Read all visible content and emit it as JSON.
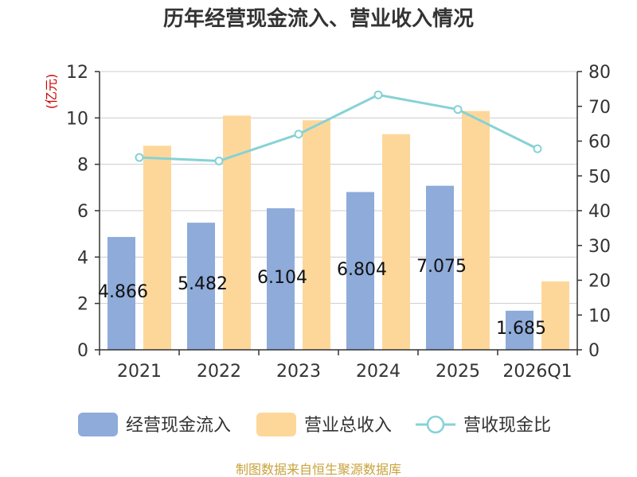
{
  "chart_data": {
    "type": "bar",
    "title": "历年经营现金流入、营业收入情况",
    "ylabel": "(亿元)",
    "categories": [
      "2021",
      "2022",
      "2023",
      "2024",
      "2025",
      "2026Q1"
    ],
    "ylim": [
      0,
      12
    ],
    "yticks": [
      "0",
      "2",
      "4",
      "6",
      "8",
      "10",
      "12"
    ],
    "y2lim": [
      0,
      80
    ],
    "y2ticks": [
      "0",
      "10",
      "20",
      "30",
      "40",
      "50",
      "60",
      "70",
      "80"
    ],
    "series": [
      {
        "name": "经营现金流入",
        "type": "bar",
        "axis": "left",
        "color": "#8eabd9",
        "values": [
          4.866,
          5.482,
          6.104,
          6.804,
          7.075,
          1.685
        ],
        "labels": [
          "4.866",
          "5.482",
          "6.104",
          "6.804",
          "7.075",
          "1.685"
        ]
      },
      {
        "name": "营业总收入",
        "type": "bar",
        "axis": "left",
        "color": "#fdd79a",
        "values": [
          8.8,
          10.1,
          9.9,
          9.3,
          10.3,
          2.95
        ]
      },
      {
        "name": "营收现金比",
        "type": "line",
        "axis": "right",
        "color": "#86d2d6",
        "values": [
          55.3,
          54.3,
          62.0,
          73.3,
          69.1,
          57.8
        ]
      }
    ],
    "source": "制图数据来自恒生聚源数据库"
  }
}
